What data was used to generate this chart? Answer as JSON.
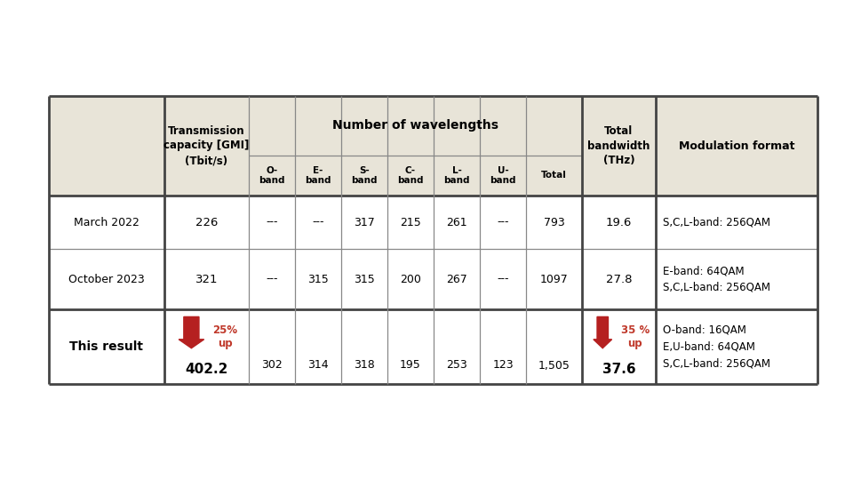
{
  "background_color": "#ffffff",
  "table_bg_header": "#e8e4d8",
  "table_bg_white": "#ffffff",
  "table_border_color": "#888888",
  "table_border_thick": "#444444",
  "arrow_color": "#b52020",
  "text_color_black": "#111111",
  "text_color_red": "#c0392b",
  "rows": [
    {
      "label": "March 2022",
      "capacity": "226",
      "o_band": "---",
      "e_band": "---",
      "s_band": "317",
      "c_band": "215",
      "l_band": "261",
      "u_band": "---",
      "total": "793",
      "bandwidth": "19.6",
      "modulation": "S,C,L-band: 256QAM",
      "is_result": false
    },
    {
      "label": "October 2023",
      "capacity": "321",
      "o_band": "---",
      "e_band": "315",
      "s_band": "315",
      "c_band": "200",
      "l_band": "267",
      "u_band": "---",
      "total": "1097",
      "bandwidth": "27.8",
      "modulation": "E-band: 64QAM\nS,C,L-band: 256QAM",
      "is_result": false
    },
    {
      "label": "This result",
      "capacity": "402.2",
      "o_band": "302",
      "e_band": "314",
      "s_band": "318",
      "c_band": "195",
      "l_band": "253",
      "u_band": "123",
      "total": "1,505",
      "bandwidth": "37.6",
      "modulation": "O-band: 16QAM\nE,U-band: 64QAM\nS,C,L-band: 256QAM",
      "is_result": true
    }
  ],
  "fig_width": 9.6,
  "fig_height": 5.4,
  "dpi": 100
}
